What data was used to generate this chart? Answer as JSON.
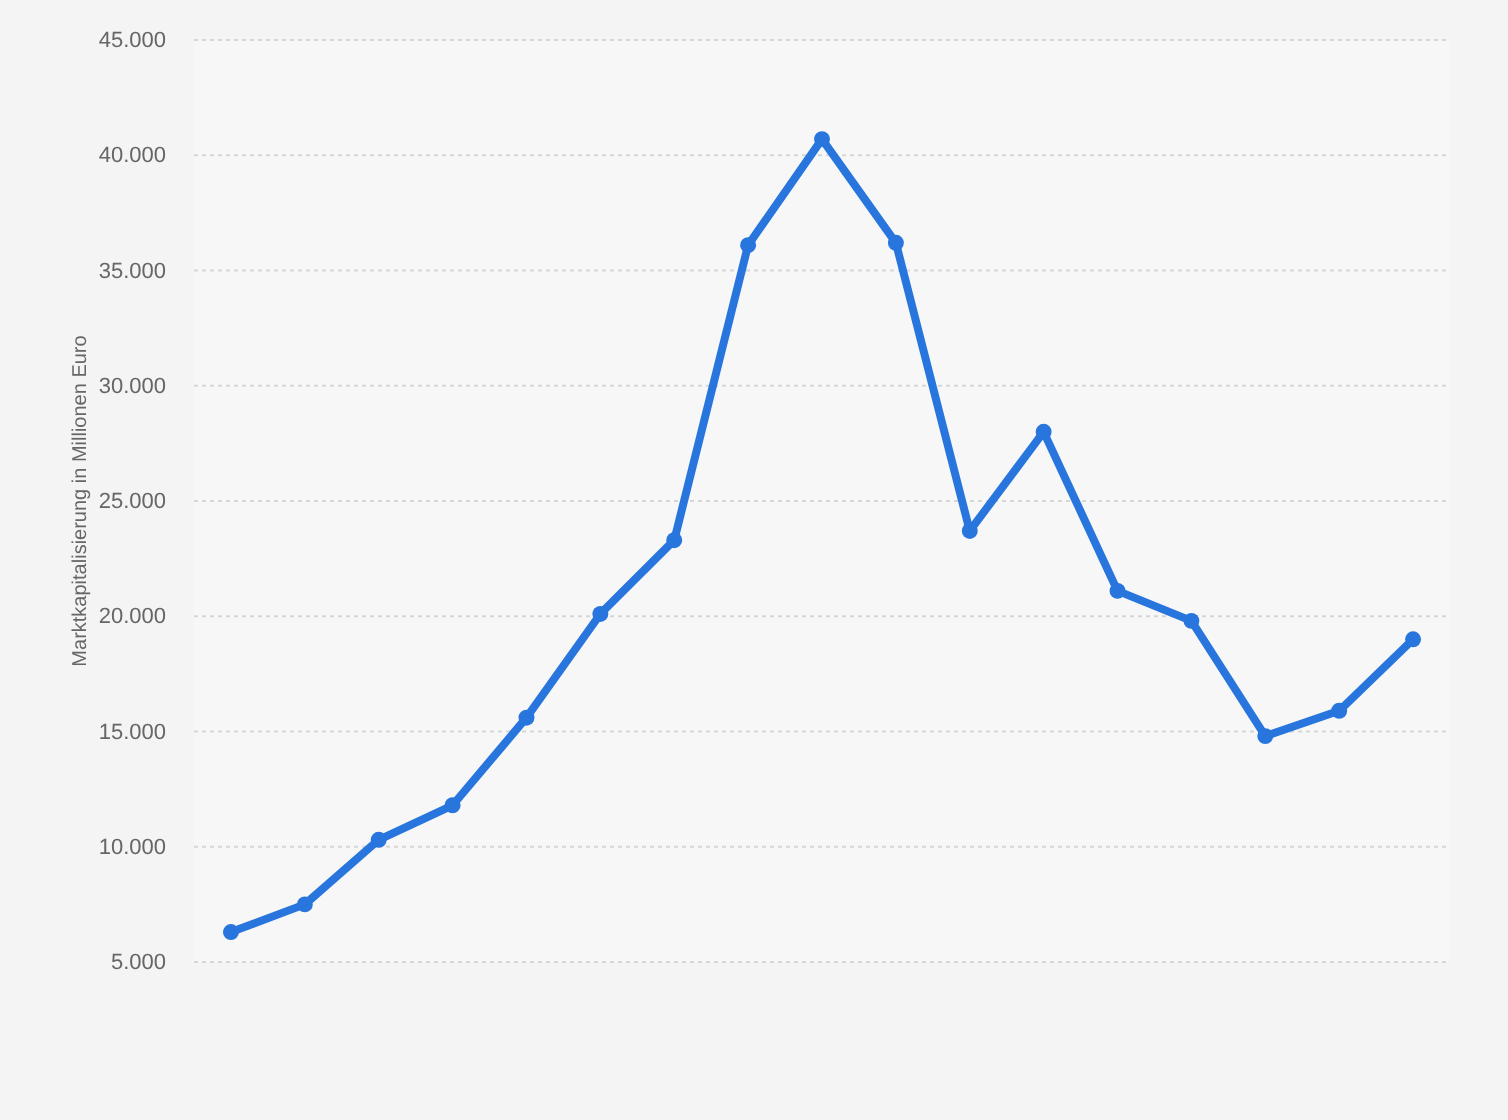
{
  "chart_data": {
    "type": "line",
    "ylabel": "Marktkapitalisierung in Millionen Euro",
    "categories": [
      null,
      null,
      null,
      null,
      null,
      null,
      null,
      null,
      null,
      null,
      null,
      null,
      null,
      null,
      null,
      null,
      null
    ],
    "series": [
      {
        "color": "#2876dd",
        "values": [
          6300,
          7500,
          10300,
          11800,
          15600,
          20100,
          23300,
          36100,
          40700,
          36200,
          23700,
          28000,
          21100,
          19800,
          14800,
          15900,
          19000
        ]
      }
    ],
    "ylim": [
      5000,
      45000
    ],
    "yticks": [
      {
        "value": 5000,
        "label": "5.000"
      },
      {
        "value": 10000,
        "label": "10.000"
      },
      {
        "value": 15000,
        "label": "15.000"
      },
      {
        "value": 20000,
        "label": "20.000"
      },
      {
        "value": 25000,
        "label": "25.000"
      },
      {
        "value": 30000,
        "label": "30.000"
      },
      {
        "value": 35000,
        "label": "35.000"
      },
      {
        "value": 40000,
        "label": "40.000"
      },
      {
        "value": 45000,
        "label": "45.000"
      }
    ],
    "grid": "y",
    "marker": "circle",
    "line_style": "solid"
  }
}
